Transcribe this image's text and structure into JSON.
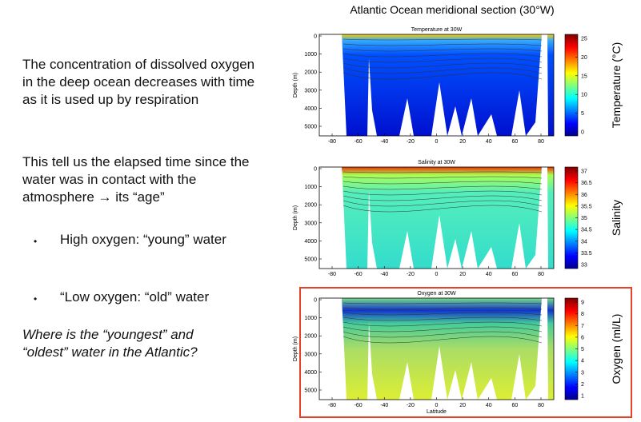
{
  "slide": {
    "title": "Atlantic Ocean meridional section (30°W)",
    "paragraphs": [
      "The concentration of dissolved oxygen in the deep ocean decreases with time as it is used up by respiration",
      "This tell us the elapsed time since the water was in contact with the atmosphere → its “age”"
    ],
    "bullets": [
      "High oxygen: “young” water",
      "“Low oxygen: “old” water"
    ],
    "question": "Where is the “youngest” and “oldest”  water in the Atlantic?"
  },
  "axes": {
    "x_ticks": [
      -80,
      -60,
      -40,
      -20,
      0,
      20,
      40,
      60,
      80
    ],
    "y_ticks": [
      0,
      1000,
      2000,
      3000,
      4000,
      5000
    ],
    "y_label": "Depth (m)",
    "x_label": "Latitude"
  },
  "panels": [
    {
      "title": "Temperature at 30W",
      "colorbar_label": "Temperature (°C)",
      "colorbar_ticks": [
        0,
        5,
        10,
        15,
        20,
        25
      ]
    },
    {
      "title": "Salinity at 30W",
      "colorbar_label": "Salinity",
      "colorbar_ticks": [
        33,
        33.5,
        34,
        34.5,
        35,
        35.5,
        36,
        36.5,
        37
      ]
    },
    {
      "title": "Oxygen at 30W",
      "colorbar_label": "Oxygen (ml/L)",
      "colorbar_ticks": [
        1,
        2,
        3,
        4,
        5,
        6,
        7,
        8,
        9
      ]
    }
  ]
}
